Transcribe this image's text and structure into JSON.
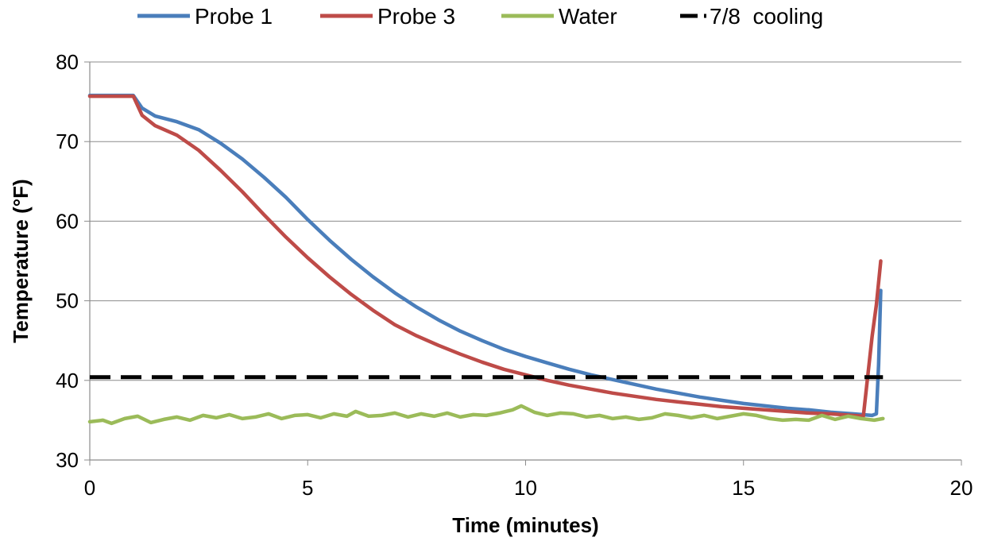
{
  "chart_data": {
    "type": "line",
    "title": "",
    "xlabel": "Time (minutes)",
    "ylabel": "Temperature (°F)",
    "xlim": [
      0,
      20
    ],
    "ylim": [
      30,
      80
    ],
    "xticks": [
      0,
      5,
      10,
      15,
      20
    ],
    "yticks": [
      30,
      40,
      50,
      60,
      70,
      80
    ],
    "grid": "horizontal",
    "legend_position": "top",
    "series": [
      {
        "name": "Probe 1",
        "color": "#4A7EBB",
        "style": "solid",
        "points": [
          [
            0,
            75.8
          ],
          [
            0.5,
            75.8
          ],
          [
            1.0,
            75.8
          ],
          [
            1.2,
            74.2
          ],
          [
            1.5,
            73.2
          ],
          [
            2.0,
            72.5
          ],
          [
            2.5,
            71.5
          ],
          [
            3.0,
            69.8
          ],
          [
            3.5,
            67.8
          ],
          [
            4.0,
            65.5
          ],
          [
            4.5,
            63.0
          ],
          [
            5.0,
            60.2
          ],
          [
            5.5,
            57.6
          ],
          [
            6.0,
            55.2
          ],
          [
            6.5,
            53.0
          ],
          [
            7.0,
            51.0
          ],
          [
            7.5,
            49.2
          ],
          [
            8.0,
            47.6
          ],
          [
            8.5,
            46.2
          ],
          [
            9.0,
            45.0
          ],
          [
            9.5,
            43.9
          ],
          [
            10.0,
            43.0
          ],
          [
            10.5,
            42.2
          ],
          [
            11.0,
            41.4
          ],
          [
            11.5,
            40.7
          ],
          [
            12.0,
            40.1
          ],
          [
            12.5,
            39.5
          ],
          [
            13.0,
            38.9
          ],
          [
            13.5,
            38.4
          ],
          [
            14.0,
            37.9
          ],
          [
            14.5,
            37.5
          ],
          [
            15.0,
            37.1
          ],
          [
            15.5,
            36.8
          ],
          [
            16.0,
            36.5
          ],
          [
            16.5,
            36.3
          ],
          [
            17.0,
            36.0
          ],
          [
            17.5,
            35.8
          ],
          [
            17.95,
            35.6
          ],
          [
            18.05,
            35.8
          ],
          [
            18.1,
            42.0
          ],
          [
            18.15,
            51.3
          ]
        ]
      },
      {
        "name": "Probe 3",
        "color": "#BE4B48",
        "style": "solid",
        "points": [
          [
            0,
            75.7
          ],
          [
            0.5,
            75.7
          ],
          [
            1.0,
            75.7
          ],
          [
            1.2,
            73.3
          ],
          [
            1.5,
            72.0
          ],
          [
            2.0,
            70.8
          ],
          [
            2.5,
            68.9
          ],
          [
            3.0,
            66.4
          ],
          [
            3.5,
            63.7
          ],
          [
            4.0,
            60.8
          ],
          [
            4.5,
            58.0
          ],
          [
            5.0,
            55.4
          ],
          [
            5.5,
            53.0
          ],
          [
            6.0,
            50.8
          ],
          [
            6.5,
            48.8
          ],
          [
            7.0,
            47.0
          ],
          [
            7.5,
            45.6
          ],
          [
            8.0,
            44.4
          ],
          [
            8.5,
            43.3
          ],
          [
            9.0,
            42.3
          ],
          [
            9.5,
            41.4
          ],
          [
            10.0,
            40.7
          ],
          [
            10.5,
            40.0
          ],
          [
            11.0,
            39.4
          ],
          [
            11.5,
            38.9
          ],
          [
            12.0,
            38.4
          ],
          [
            12.5,
            38.0
          ],
          [
            13.0,
            37.6
          ],
          [
            13.5,
            37.3
          ],
          [
            14.0,
            37.0
          ],
          [
            14.5,
            36.7
          ],
          [
            15.0,
            36.5
          ],
          [
            15.5,
            36.3
          ],
          [
            16.0,
            36.1
          ],
          [
            16.5,
            35.9
          ],
          [
            17.0,
            35.8
          ],
          [
            17.5,
            35.6
          ],
          [
            17.75,
            35.5
          ],
          [
            17.85,
            40.5
          ],
          [
            17.95,
            45.5
          ],
          [
            18.05,
            49.5
          ],
          [
            18.15,
            55.0
          ]
        ]
      },
      {
        "name": "Water",
        "color": "#9BBB59",
        "style": "solid",
        "points": [
          [
            0,
            34.8
          ],
          [
            0.3,
            35.0
          ],
          [
            0.5,
            34.6
          ],
          [
            0.8,
            35.2
          ],
          [
            1.1,
            35.5
          ],
          [
            1.4,
            34.7
          ],
          [
            1.7,
            35.1
          ],
          [
            2.0,
            35.4
          ],
          [
            2.3,
            35.0
          ],
          [
            2.6,
            35.6
          ],
          [
            2.9,
            35.3
          ],
          [
            3.2,
            35.7
          ],
          [
            3.5,
            35.2
          ],
          [
            3.8,
            35.4
          ],
          [
            4.1,
            35.8
          ],
          [
            4.4,
            35.2
          ],
          [
            4.7,
            35.6
          ],
          [
            5.0,
            35.7
          ],
          [
            5.3,
            35.3
          ],
          [
            5.6,
            35.8
          ],
          [
            5.9,
            35.5
          ],
          [
            6.1,
            36.1
          ],
          [
            6.4,
            35.5
          ],
          [
            6.7,
            35.6
          ],
          [
            7.0,
            35.9
          ],
          [
            7.3,
            35.4
          ],
          [
            7.6,
            35.8
          ],
          [
            7.9,
            35.5
          ],
          [
            8.2,
            35.9
          ],
          [
            8.5,
            35.4
          ],
          [
            8.8,
            35.7
          ],
          [
            9.1,
            35.6
          ],
          [
            9.4,
            35.9
          ],
          [
            9.7,
            36.3
          ],
          [
            9.9,
            36.8
          ],
          [
            10.2,
            36.0
          ],
          [
            10.5,
            35.6
          ],
          [
            10.8,
            35.9
          ],
          [
            11.1,
            35.8
          ],
          [
            11.4,
            35.4
          ],
          [
            11.7,
            35.6
          ],
          [
            12.0,
            35.2
          ],
          [
            12.3,
            35.4
          ],
          [
            12.6,
            35.1
          ],
          [
            12.9,
            35.3
          ],
          [
            13.2,
            35.8
          ],
          [
            13.5,
            35.6
          ],
          [
            13.8,
            35.3
          ],
          [
            14.1,
            35.6
          ],
          [
            14.4,
            35.2
          ],
          [
            14.7,
            35.5
          ],
          [
            15.0,
            35.8
          ],
          [
            15.3,
            35.6
          ],
          [
            15.6,
            35.2
          ],
          [
            15.9,
            35.0
          ],
          [
            16.2,
            35.1
          ],
          [
            16.5,
            35.0
          ],
          [
            16.8,
            35.6
          ],
          [
            17.1,
            35.1
          ],
          [
            17.4,
            35.5
          ],
          [
            17.7,
            35.2
          ],
          [
            18.0,
            35.0
          ],
          [
            18.2,
            35.2
          ]
        ]
      },
      {
        "name": "7/8  cooling",
        "color": "#000000",
        "style": "dashed",
        "points": [
          [
            0,
            40.4
          ],
          [
            18.2,
            40.4
          ]
        ]
      }
    ]
  }
}
